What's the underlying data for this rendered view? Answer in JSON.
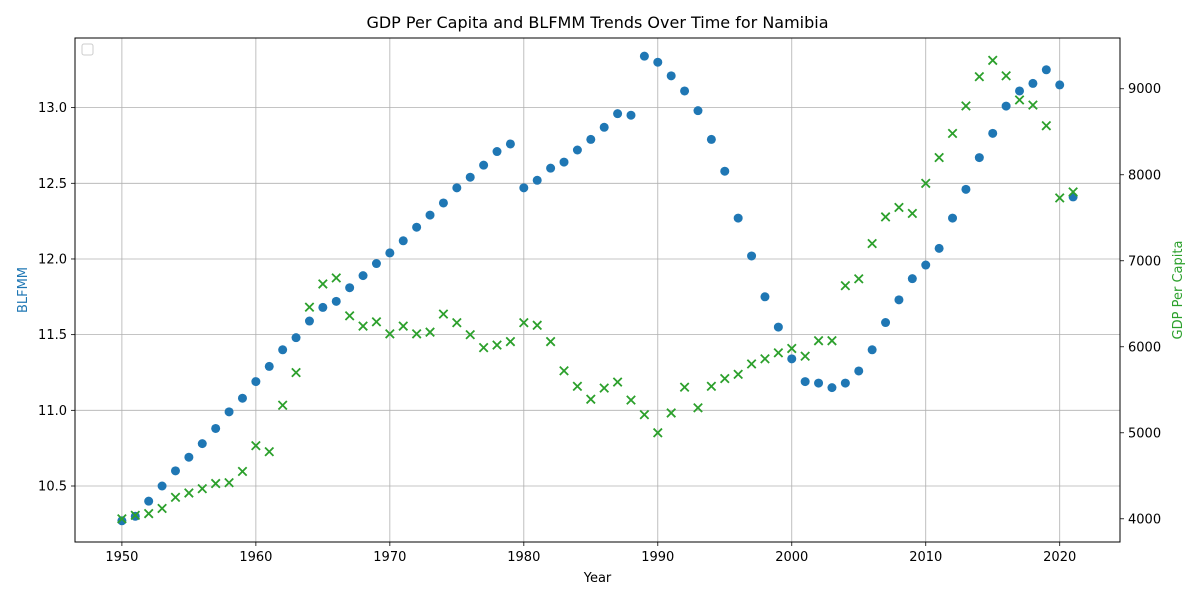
{
  "chart_data": {
    "type": "scatter",
    "title": "GDP Per Capita and BLFMM Trends Over Time for Namibia",
    "xlabel": "Year",
    "ylabel_left": "BLFMM",
    "ylabel_right": "GDP Per Capita",
    "xlim": [
      1946.5,
      2024.5
    ],
    "ylim_left": [
      10.13,
      13.46
    ],
    "ylim_right": [
      3730,
      9590
    ],
    "x_ticks": [
      1950,
      1960,
      1970,
      1980,
      1990,
      2000,
      2010,
      2020
    ],
    "y_ticks_left": [
      10.5,
      11.0,
      11.5,
      12.0,
      12.5,
      13.0
    ],
    "y_ticks_left_labels": [
      "10.5",
      "11.0",
      "11.5",
      "12.0",
      "12.5",
      "13.0"
    ],
    "y_ticks_right": [
      4000,
      5000,
      6000,
      7000,
      8000,
      9000
    ],
    "grid": true,
    "legend": "top-left",
    "x": [
      1950,
      1951,
      1952,
      1953,
      1954,
      1955,
      1956,
      1957,
      1958,
      1959,
      1960,
      1961,
      1962,
      1963,
      1964,
      1965,
      1966,
      1967,
      1968,
      1969,
      1970,
      1971,
      1972,
      1973,
      1974,
      1975,
      1976,
      1977,
      1978,
      1979,
      1980,
      1981,
      1982,
      1983,
      1984,
      1985,
      1986,
      1987,
      1988,
      1989,
      1990,
      1991,
      1992,
      1993,
      1994,
      1995,
      1996,
      1997,
      1998,
      1999,
      2000,
      2001,
      2002,
      2003,
      2004,
      2005,
      2006,
      2007,
      2008,
      2009,
      2010,
      2011,
      2012,
      2013,
      2014,
      2015,
      2016,
      2017,
      2018,
      2019,
      2020,
      2021
    ],
    "series": [
      {
        "axis": "left",
        "marker": "circle",
        "color": "#1f77b4",
        "values": [
          10.27,
          10.3,
          10.4,
          10.5,
          10.6,
          10.69,
          10.78,
          10.88,
          10.99,
          11.08,
          11.19,
          11.29,
          11.4,
          11.48,
          11.59,
          11.68,
          11.72,
          11.81,
          11.89,
          11.97,
          12.04,
          12.12,
          12.21,
          12.29,
          12.37,
          12.47,
          12.54,
          12.62,
          12.71,
          12.76,
          12.47,
          12.52,
          12.6,
          12.64,
          12.72,
          12.79,
          12.87,
          12.96,
          12.95,
          13.34,
          13.3,
          13.21,
          13.11,
          12.98,
          12.79,
          12.58,
          12.27,
          12.02,
          11.75,
          11.55,
          11.34,
          11.19,
          11.18,
          11.15,
          11.18,
          11.26,
          11.4,
          11.58,
          11.73,
          11.87,
          11.96,
          12.07,
          12.27,
          12.46,
          12.67,
          12.83,
          13.01,
          13.11,
          13.16,
          13.25,
          13.15,
          12.41
        ]
      },
      {
        "axis": "right",
        "marker": "x",
        "color": "#2ca02c",
        "values": [
          4000,
          4040,
          4060,
          4120,
          4250,
          4300,
          4350,
          4410,
          4420,
          4550,
          4850,
          4780,
          5320,
          5700,
          6460,
          6730,
          6800,
          6360,
          6240,
          6290,
          6150,
          6240,
          6150,
          6170,
          6380,
          6280,
          6140,
          5990,
          6020,
          6060,
          6280,
          6250,
          6060,
          5720,
          5540,
          5390,
          5520,
          5590,
          5380,
          5210,
          5000,
          5230,
          5530,
          5290,
          5540,
          5630,
          5680,
          5800,
          5860,
          5930,
          5980,
          5890,
          6070,
          6070,
          6710,
          6790,
          7200,
          7510,
          7620,
          7550,
          7900,
          8200,
          8480,
          8800,
          9140,
          9330,
          9150,
          8870,
          8810,
          8570,
          7730,
          7800
        ]
      }
    ]
  }
}
